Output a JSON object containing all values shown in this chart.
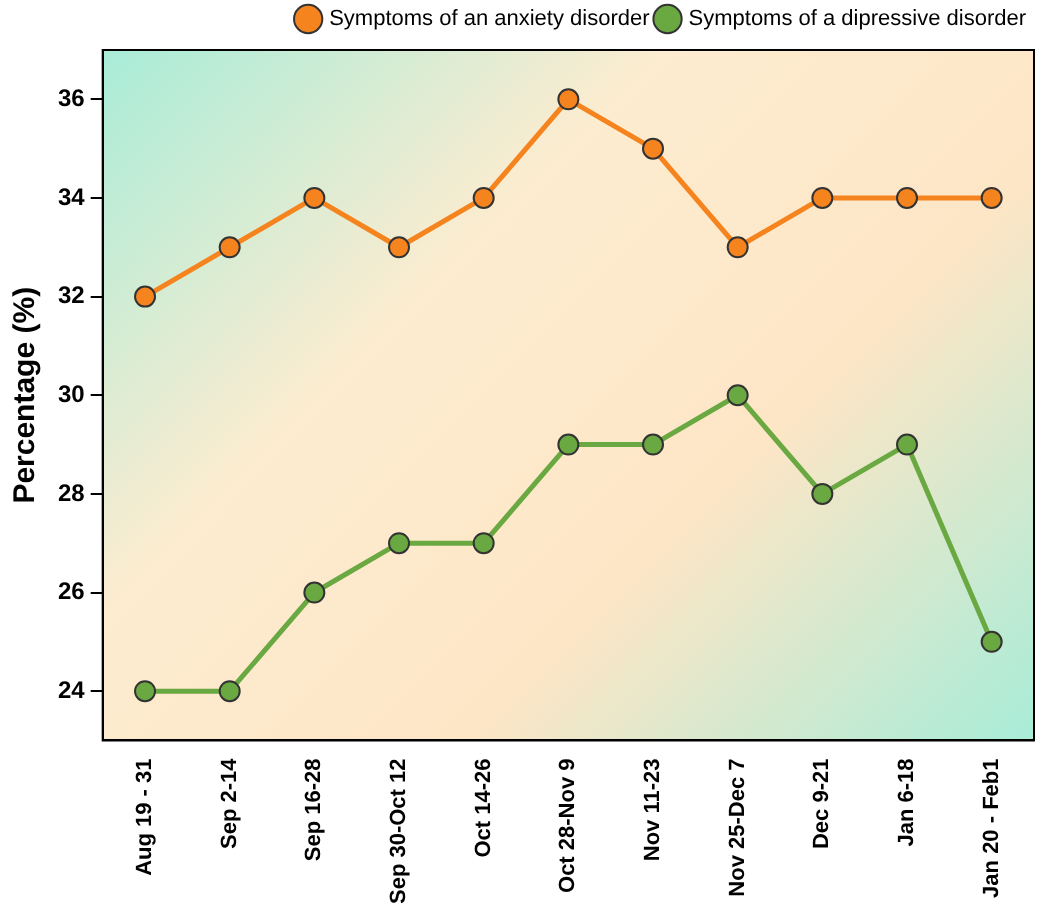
{
  "chart_data": {
    "type": "line",
    "ylabel": "Percentage (%)",
    "categories": [
      "Aug 19 - 31",
      "Sep 2-14",
      "Sep 16-28",
      "Sep 30-Oct 12",
      "Oct 14-26",
      "Oct 28-Nov 9",
      "Nov 11-23",
      "Nov 25-Dec 7",
      "Dec 9-21",
      "Jan 6-18",
      "Jan 20 - Feb1"
    ],
    "series": [
      {
        "name": "Symptoms of an anxiety disorder",
        "color": "#f5841f",
        "values": [
          32,
          33,
          34,
          33,
          34,
          36,
          35,
          33,
          34,
          34,
          34
        ]
      },
      {
        "name": "Symptoms of a dipressive disorder",
        "color": "#6aa842",
        "values": [
          24,
          24,
          26,
          27,
          27,
          29,
          29,
          30,
          28,
          29,
          25
        ]
      }
    ],
    "ylim": [
      23,
      37
    ],
    "yticks": [
      24,
      26,
      28,
      30,
      32,
      34,
      36
    ],
    "grid": false,
    "legend": "top right",
    "marker": "circle",
    "line_style": "solid"
  }
}
